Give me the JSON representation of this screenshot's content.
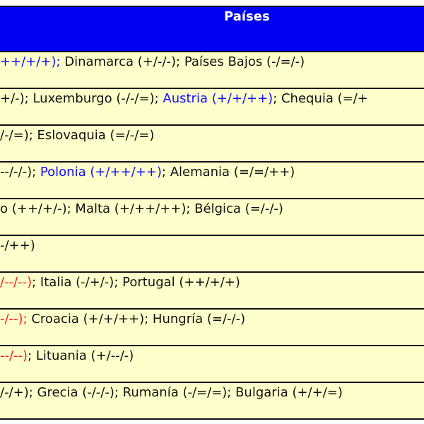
{
  "header": {
    "title": "Países"
  },
  "colors": {
    "header_bg": "#0000f5",
    "row_bg": "#ffffcc",
    "positive": "#1010ff",
    "negative": "#ff1a1a"
  },
  "rows": [
    [
      {
        "t": "++/+/+);",
        "c": "blue"
      },
      {
        "t": " Dinamarca (+/-/-); Países Bajos (-/=/-)",
        "c": ""
      }
    ],
    [
      {
        "t": "+/-); Luxemburgo (-/-/=); ",
        "c": ""
      },
      {
        "t": "Austria (+/+/++)",
        "c": "blue"
      },
      {
        "t": "; Chequia (=/+",
        "c": ""
      }
    ],
    [
      {
        "t": "/-/=); Eslovaquia (=/-/=)",
        "c": ""
      }
    ],
    [
      {
        "t": "--/-/-); ",
        "c": ""
      },
      {
        "t": "Polonia (+/++/++)",
        "c": "blue"
      },
      {
        "t": "; Alemania (=/=/++)",
        "c": ""
      }
    ],
    [
      {
        "t": "o (++/+/-); Malta (+/++/++); Bélgica (=/-/-)",
        "c": ""
      }
    ],
    [
      {
        "t": "-/++)",
        "c": ""
      }
    ],
    [
      {
        "t": "/--/--)",
        "c": "red"
      },
      {
        "t": "; Italia (-/+/-); Portugal (++/+/+)",
        "c": ""
      }
    ],
    [
      {
        "t": "-/--);",
        "c": "red"
      },
      {
        "t": " Croacia (+/+/++); Hungría (=/-/-)",
        "c": ""
      }
    ],
    [
      {
        "t": "--/--)",
        "c": "red"
      },
      {
        "t": "; Lituania (+/--/-)",
        "c": ""
      }
    ],
    [
      {
        "t": "/-/+); Grecia (-/-/-); Rumanía (-/=/=); Bulgaria (+/+/=)",
        "c": ""
      }
    ]
  ]
}
